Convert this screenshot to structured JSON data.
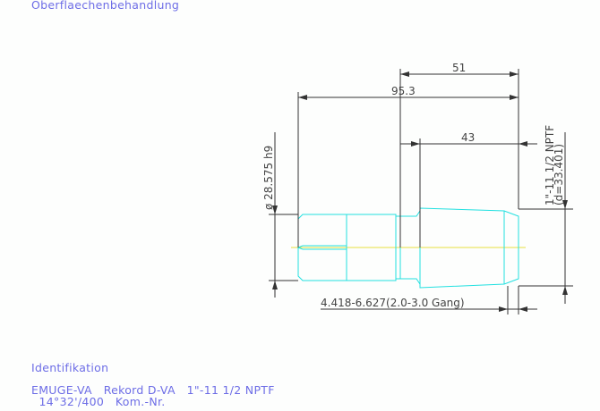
{
  "headings": {
    "surface": "Oberflaechenbehandlung",
    "identification": "Identifikation"
  },
  "identification_lines": [
    "EMUGE-VA   Rekord D-VA   1\"-11 1/2 NPTF",
    "  14°32'/400   Kom.-Nr."
  ],
  "dimensions": {
    "overall_length": "95.3",
    "thread_section": "51",
    "thread_length": "43",
    "shank_diameter": "ø 28.575 h9",
    "thread_spec": "1\"-11 1/2 NPTF",
    "thread_diameter": "(d=33.401)",
    "core_range": "4.418-6.627(2.0-3.0 Gang)"
  },
  "colors": {
    "part_outline": "#22e0e0",
    "centerline": "#e8e040",
    "dimension_lines": "#333333",
    "label_text": "#6d6de6"
  }
}
